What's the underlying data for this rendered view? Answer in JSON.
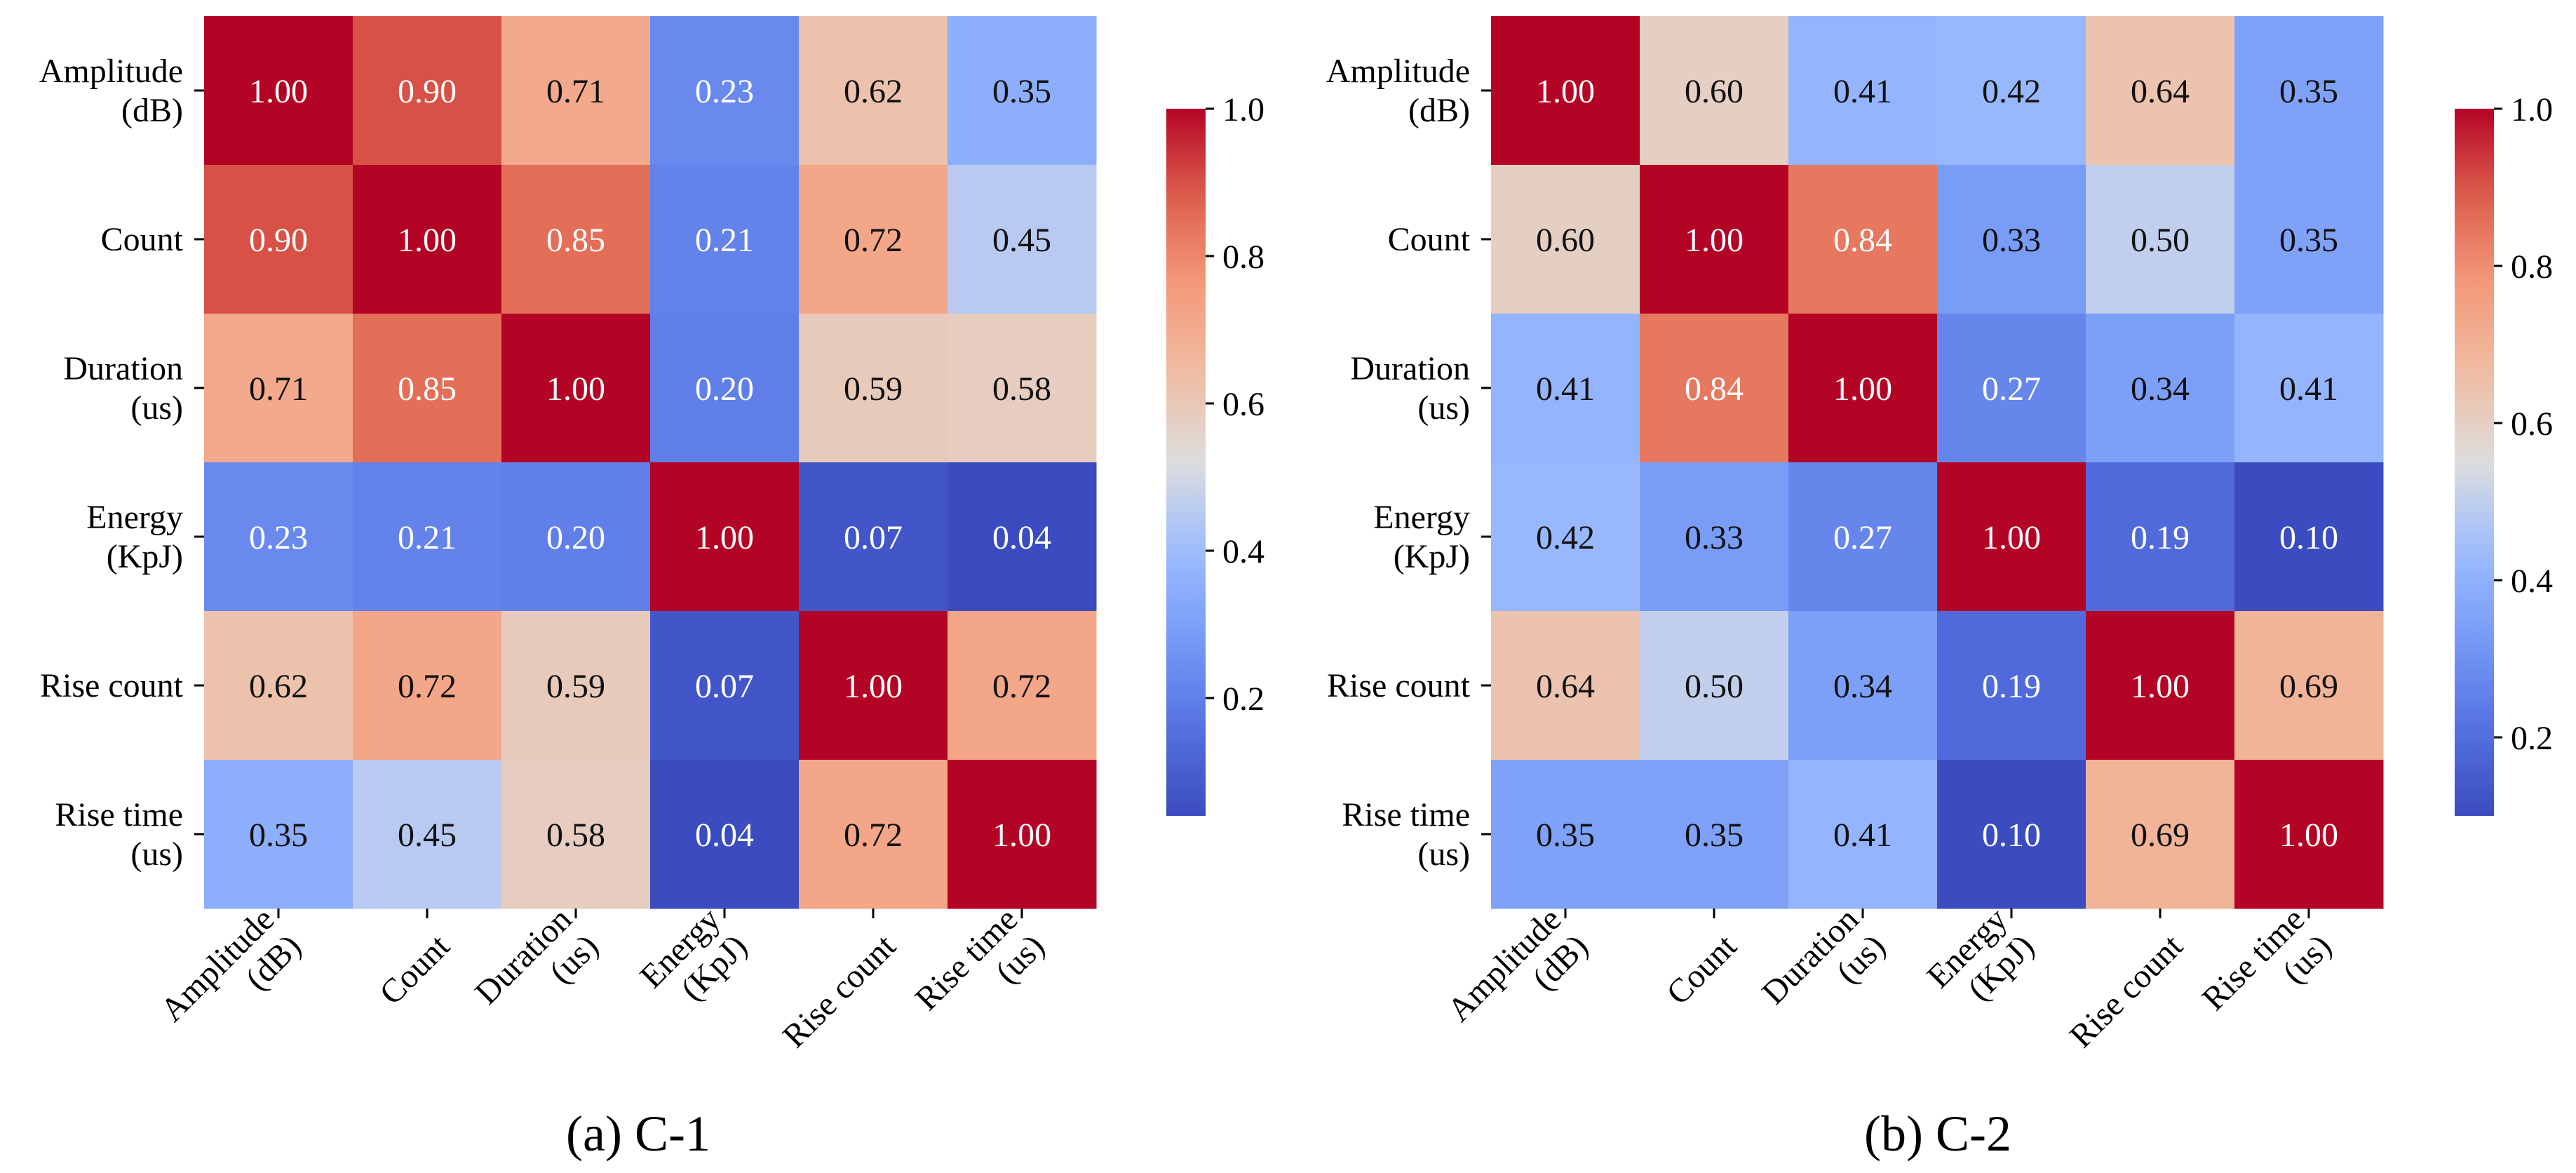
{
  "chart_data": [
    {
      "type": "heatmap",
      "caption": "(a) C-1",
      "row_labels": [
        [
          "Amplitude",
          "(dB)"
        ],
        [
          "Count"
        ],
        [
          "Duration",
          "(us)"
        ],
        [
          "Energy",
          "(KpJ)"
        ],
        [
          "Rise count"
        ],
        [
          "Rise time",
          "(us)"
        ]
      ],
      "col_labels": [
        [
          "Amplitude",
          "(dB)"
        ],
        [
          "Count"
        ],
        [
          "Duration",
          "(us)"
        ],
        [
          "Energy",
          "(KpJ)"
        ],
        [
          "Rise count"
        ],
        [
          "Rise time",
          "(us)"
        ]
      ],
      "values": [
        [
          1.0,
          0.9,
          0.71,
          0.23,
          0.62,
          0.35
        ],
        [
          0.9,
          1.0,
          0.85,
          0.21,
          0.72,
          0.45
        ],
        [
          0.71,
          0.85,
          1.0,
          0.2,
          0.59,
          0.58
        ],
        [
          0.23,
          0.21,
          0.2,
          1.0,
          0.07,
          0.04
        ],
        [
          0.62,
          0.72,
          0.59,
          0.07,
          1.0,
          0.72
        ],
        [
          0.35,
          0.45,
          0.58,
          0.04,
          0.72,
          1.0
        ]
      ],
      "colormap": "coolwarm",
      "vmin": 0.04,
      "vmax": 1.0,
      "colorbar_ticks": [
        "0.2",
        "0.4",
        "0.6",
        "0.8",
        "1.0"
      ]
    },
    {
      "type": "heatmap",
      "caption": "(b) C-2",
      "row_labels": [
        [
          "Amplitude",
          "(dB)"
        ],
        [
          "Count"
        ],
        [
          "Duration",
          "(us)"
        ],
        [
          "Energy",
          "(KpJ)"
        ],
        [
          "Rise count"
        ],
        [
          "Rise time",
          "(us)"
        ]
      ],
      "col_labels": [
        [
          "Amplitude",
          "(dB)"
        ],
        [
          "Count"
        ],
        [
          "Duration",
          "(us)"
        ],
        [
          "Energy",
          "(KpJ)"
        ],
        [
          "Rise count"
        ],
        [
          "Rise time",
          "(us)"
        ]
      ],
      "values": [
        [
          1.0,
          0.6,
          0.41,
          0.42,
          0.64,
          0.35
        ],
        [
          0.6,
          1.0,
          0.84,
          0.33,
          0.5,
          0.35
        ],
        [
          0.41,
          0.84,
          1.0,
          0.27,
          0.34,
          0.41
        ],
        [
          0.42,
          0.33,
          0.27,
          1.0,
          0.19,
          0.1
        ],
        [
          0.64,
          0.5,
          0.34,
          0.19,
          1.0,
          0.69
        ],
        [
          0.35,
          0.35,
          0.41,
          0.1,
          0.69,
          1.0
        ]
      ],
      "colormap": "coolwarm",
      "vmin": 0.1,
      "vmax": 1.0,
      "colorbar_ticks": [
        "0.2",
        "0.4",
        "0.6",
        "0.8",
        "1.0"
      ]
    }
  ]
}
